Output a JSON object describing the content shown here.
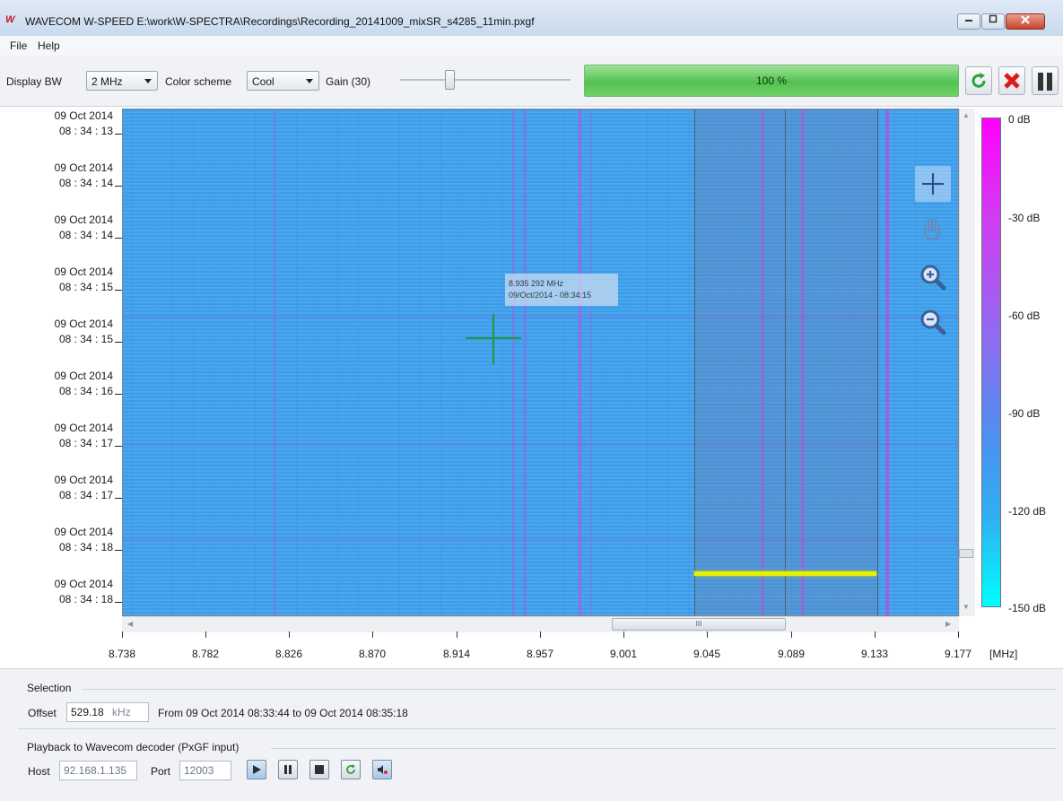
{
  "window": {
    "title": "WAVECOM W-SPEED E:\\work\\W-SPECTRA\\Recordings\\Recording_20141009_mixSR_s4285_11min.pxgf",
    "logo_text": "W"
  },
  "menu": {
    "items": [
      "File",
      "Help"
    ]
  },
  "toolbar": {
    "display_bw_label": "Display BW",
    "display_bw_value": "2 MHz",
    "color_scheme_label": "Color scheme",
    "color_scheme_value": "Cool",
    "gain_label": "Gain (30)",
    "gain_value": 30,
    "progress_text": "100 %",
    "progress_fraction": 1.0
  },
  "spectrogram": {
    "time_labels": [
      {
        "date": "09 Oct 2014",
        "time": "08 : 34 : 13"
      },
      {
        "date": "09 Oct 2014",
        "time": "08 : 34 : 14"
      },
      {
        "date": "09 Oct 2014",
        "time": "08 : 34 : 14"
      },
      {
        "date": "09 Oct 2014",
        "time": "08 : 34 : 15"
      },
      {
        "date": "09 Oct 2014",
        "time": "08 : 34 : 15"
      },
      {
        "date": "09 Oct 2014",
        "time": "08 : 34 : 16"
      },
      {
        "date": "09 Oct 2014",
        "time": "08 : 34 : 17"
      },
      {
        "date": "09 Oct 2014",
        "time": "08 : 34 : 17"
      },
      {
        "date": "09 Oct 2014",
        "time": "08 : 34 : 18"
      },
      {
        "date": "09 Oct 2014",
        "time": "08 : 34 : 18"
      }
    ],
    "freq_labels": [
      "8.738",
      "8.782",
      "8.826",
      "8.870",
      "8.914",
      "8.957",
      "9.001",
      "9.045",
      "9.089",
      "9.133",
      "9.177"
    ],
    "freq_unit": "[MHz]",
    "colorbar_labels": [
      "0 dB",
      "-30 dB",
      "-60 dB",
      "-90 dB",
      "-120 dB",
      "-150 dB"
    ],
    "tooltip": {
      "freq": "8.935 292 MHz",
      "time": "09/Oct/2014 - 08:34:15"
    },
    "scroll_grip": "III",
    "colors": {
      "background": "#3fa2ee",
      "cursor": "#1e9a3a",
      "selection_bar": "#e6f000"
    }
  },
  "tools": [
    "crosshair-icon",
    "pan-hand-icon",
    "zoom-in-icon",
    "zoom-out-icon"
  ],
  "selection": {
    "group_label": "Selection",
    "offset_label": "Offset",
    "offset_value": "529.18",
    "offset_unit": "kHz",
    "range_text": "From 09 Oct 2014 08:33:44 to 09 Oct 2014 08:35:18"
  },
  "playback": {
    "group_label": "Playback to Wavecom decoder (PxGF input)",
    "host_label": "Host",
    "host_value": "92.168.1.135",
    "port_label": "Port",
    "port_value": "12003"
  }
}
